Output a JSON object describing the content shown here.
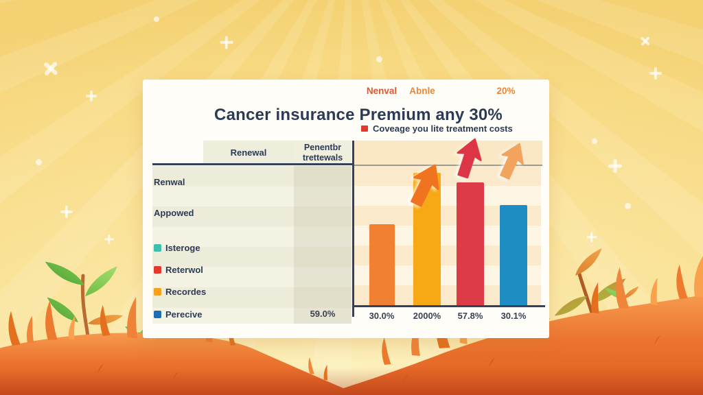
{
  "title": "Cancer insurance Premium any 30%",
  "legend_note": {
    "text": "Coveage you lite treatment costs",
    "bullet_color": "#E03A2E"
  },
  "table": {
    "headers": [
      "Renewal",
      "Penentbr trettewals"
    ],
    "rows": [
      {
        "label": "Renwal"
      },
      {
        "label": "Appowed"
      },
      {
        "label": "Isteroge",
        "swatch_color": "#3EC0AC"
      },
      {
        "label": "Reterwol",
        "swatch_color": "#E23A2E"
      },
      {
        "label": "Recordes",
        "swatch_color": "#F5A31C"
      },
      {
        "label": "Perecive",
        "swatch_color": "#1D6FB5",
        "value": "59.0%"
      }
    ]
  },
  "chart_data": {
    "type": "bar",
    "title": "Cancer insurance Premium any 30%",
    "categories": [
      "30.0%",
      "2000%",
      "57.8%",
      "30.1%"
    ],
    "values": [
      58,
      95,
      88,
      72
    ],
    "values_note": "relative bar heights in % of plot height; chart shows no y-axis scale",
    "bar_colors": [
      "#F28033",
      "#F7A815",
      "#DC3B47",
      "#1D8DC3"
    ],
    "header_labels": [
      {
        "text": "Nenval",
        "color": "#DD5730"
      },
      {
        "text": "Abnle",
        "color": "#E8873B"
      },
      {
        "text": "20%",
        "color": "#E8873B"
      }
    ],
    "arrows": [
      {
        "icon": "up-arrow",
        "color": "#F07420"
      },
      {
        "icon": "up-arrow",
        "color": "#DC3545"
      },
      {
        "icon": "up-arrow",
        "color": "#F2A45F"
      }
    ],
    "xlabel": "",
    "ylabel": "",
    "ylim": [
      0,
      100
    ],
    "grid": "horizontal stripe bands",
    "axis_color": "#33415C",
    "legend_position": "left table column"
  },
  "palette": {
    "card_bg": "#FFFDF8",
    "text_navy": "#2B3A55",
    "table_beige": "#EFEDDB",
    "chart_band": "#FAE7C5",
    "background_yellow": "#F9E09A",
    "hill_orange": "#EC7430",
    "leaf_green": "#5FB23C"
  }
}
